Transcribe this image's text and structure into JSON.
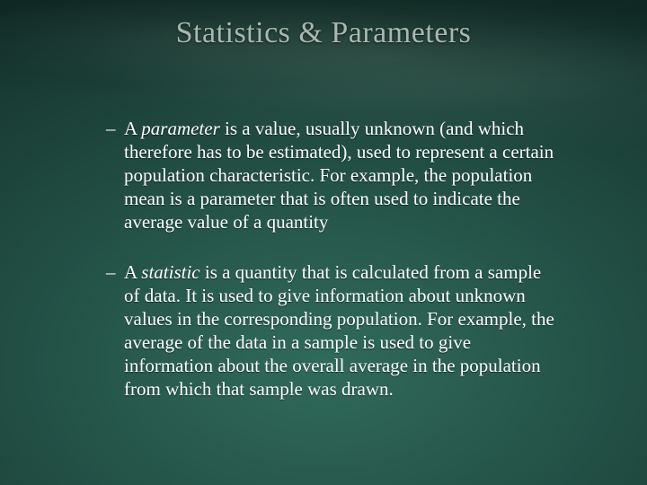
{
  "title": "Statistics & Parameters",
  "bullets": [
    {
      "prefix": "A ",
      "term": "parameter",
      "rest": " is a value, usually unknown (and which therefore has to be estimated), used to represent a certain population characteristic. For example, the population mean is a parameter that is often used to indicate the average value of a quantity"
    },
    {
      "prefix": "A ",
      "term": "statistic",
      "rest": " is a quantity that is calculated from a sample of data. It is used to give information about unknown values in the corresponding population. For example, the average of the data in a sample is used to give information about the overall average in the population from which that sample was drawn."
    }
  ],
  "colors": {
    "title_color": "#a9b7af",
    "text_color": "#ffffff",
    "bg_center": "#2f6a5a",
    "bg_edge": "#0f2722"
  },
  "fonts": {
    "title_size_pt": 26,
    "body_size_pt": 16,
    "family": "Times New Roman"
  }
}
